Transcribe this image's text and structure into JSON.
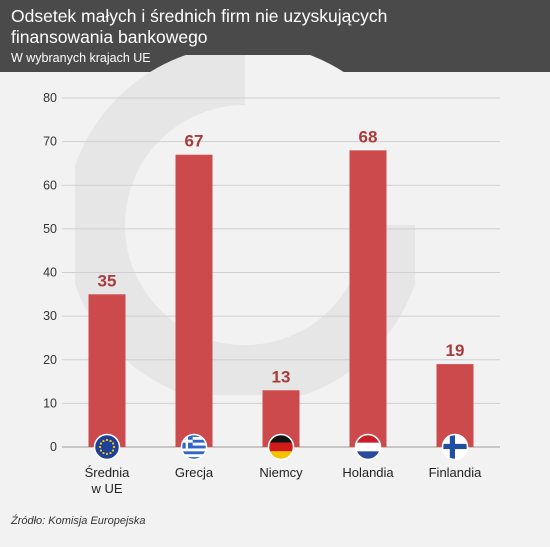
{
  "header": {
    "title": "Odsetek małych i średnich firm nie uzyskujących finansowania bankowego",
    "subtitle": "W wybranych krajach UE"
  },
  "colors": {
    "bar": "#cc4a4c",
    "value_label": "#a83c3c",
    "header_bg": "#4a4a4a",
    "background": "#f2f2f2"
  },
  "chart_data": {
    "type": "bar",
    "categories": [
      "Średnia\nw UE",
      "Grecja",
      "Niemcy",
      "Holandia",
      "Finlandia"
    ],
    "values": [
      35,
      67,
      13,
      68,
      19
    ],
    "icons": [
      "eu-flag-icon",
      "greece-flag-icon",
      "germany-flag-icon",
      "netherlands-flag-icon",
      "finland-flag-icon"
    ],
    "ylim": [
      0,
      80
    ],
    "yticks": [
      0,
      10,
      20,
      30,
      40,
      50,
      60,
      70,
      80
    ],
    "grid": true,
    "title": "Odsetek małych i średnich firm nie uzyskujących finansowania bankowego",
    "subtitle": "W wybranych krajach UE",
    "xlabel": "",
    "ylabel": ""
  },
  "footer": {
    "source": "Źródło: Komisja Europejska"
  }
}
